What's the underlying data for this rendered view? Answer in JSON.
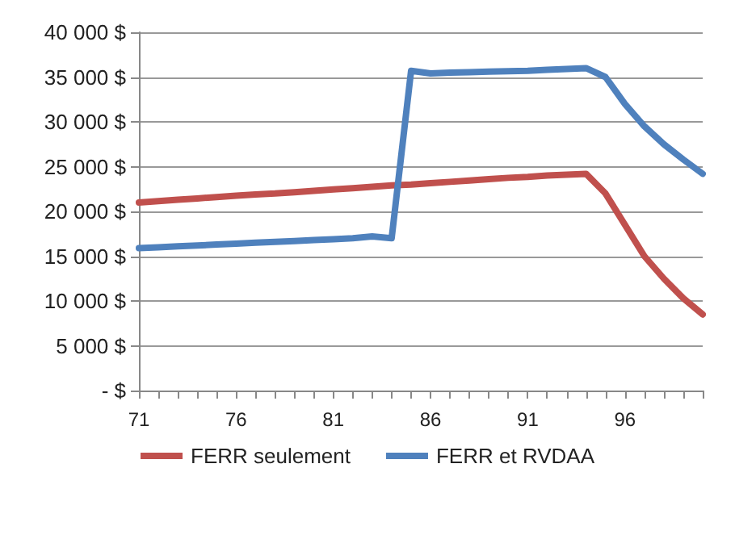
{
  "chart_data": {
    "type": "line",
    "categories": [
      "71",
      null,
      null,
      null,
      null,
      "76",
      null,
      null,
      null,
      null,
      "81",
      null,
      null,
      null,
      null,
      "86",
      null,
      null,
      null,
      null,
      "91",
      null,
      null,
      null,
      null,
      "96",
      null,
      null,
      null,
      null
    ],
    "series": [
      {
        "name": "FERR seulement",
        "color": "#c0504d",
        "values": [
          21000,
          21150,
          21300,
          21450,
          21600,
          21750,
          21900,
          22000,
          22150,
          22300,
          22450,
          22600,
          22750,
          22900,
          23000,
          23150,
          23300,
          23450,
          23600,
          23750,
          23850,
          24000,
          24100,
          24200,
          22000,
          18500,
          15000,
          12500,
          10300,
          8500
        ]
      },
      {
        "name": "FERR et RVDAA",
        "color": "#4f81bd",
        "values": [
          15900,
          16000,
          16100,
          16200,
          16300,
          16400,
          16500,
          16600,
          16700,
          16800,
          16900,
          17000,
          17200,
          17000,
          35700,
          35400,
          35500,
          35550,
          35600,
          35650,
          35700,
          35800,
          35900,
          36000,
          35000,
          32000,
          29500,
          27500,
          25800,
          24200
        ]
      }
    ],
    "ylim": [
      0,
      40000
    ],
    "yticks": [
      {
        "value": 0,
        "label": "- $"
      },
      {
        "value": 5000,
        "label": "5 000 $"
      },
      {
        "value": 10000,
        "label": "10 000 $"
      },
      {
        "value": 15000,
        "label": "15 000 $"
      },
      {
        "value": 20000,
        "label": "20 000 $"
      },
      {
        "value": 25000,
        "label": "25 000 $"
      },
      {
        "value": 30000,
        "label": "30 000 $"
      },
      {
        "value": 35000,
        "label": "35 000 $"
      },
      {
        "value": 40000,
        "label": "40 000 $"
      }
    ],
    "grid": "y",
    "legend": "bottom",
    "marker": "none",
    "line_style": "solid"
  }
}
